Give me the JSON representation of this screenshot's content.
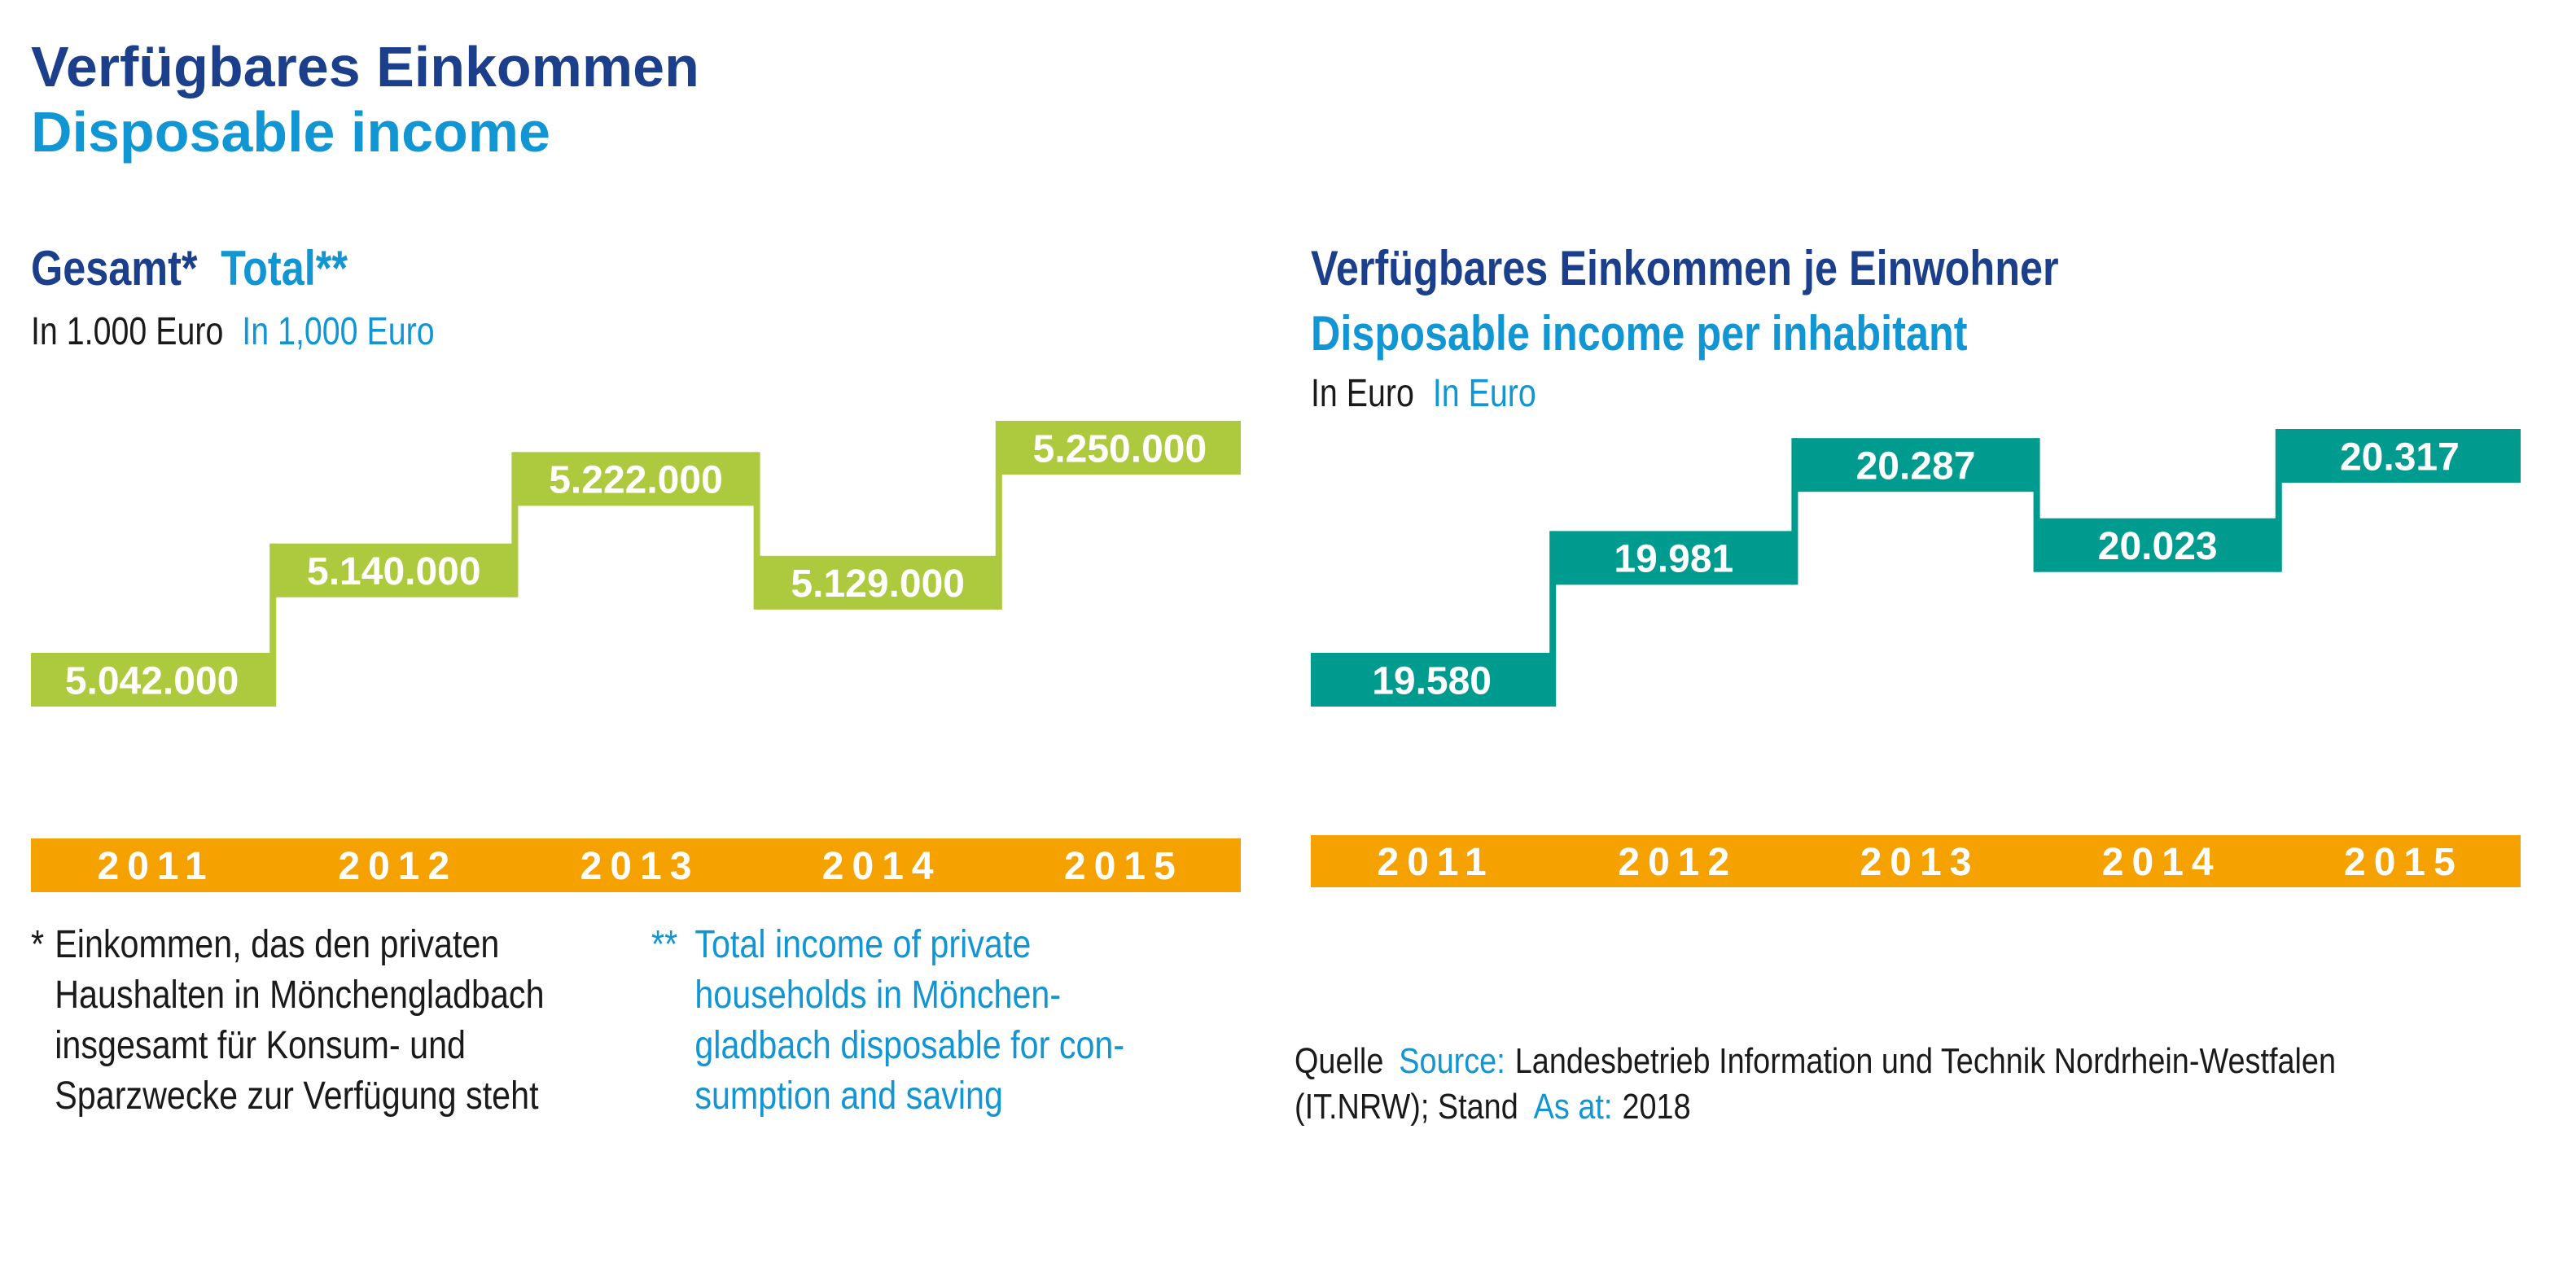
{
  "header": {
    "title_de": "Verfügbares Einkommen",
    "title_en": "Disposable income"
  },
  "left_chart": {
    "title_de": "Gesamt*",
    "title_en": "Total**",
    "unit_de": "In 1.000 Euro",
    "unit_en": "In 1,000 Euro"
  },
  "right_chart": {
    "title_de": "Verfügbares Einkommen je Einwohner",
    "title_en": "Disposable income per inhabitant",
    "unit_de": "In Euro",
    "unit_en": "In Euro"
  },
  "footnotes": {
    "de_marker": "*",
    "de_lines": [
      "Einkommen, das den privaten",
      "Haushalten in Mönchengladbach",
      "insgesamt für Konsum- und",
      "Sparzwecke zur Verfügung steht"
    ],
    "en_marker": "**",
    "en_lines": [
      "Total income of private",
      "households in Mönchen-",
      "gladbach disposable for con-",
      "sumption and saving"
    ]
  },
  "source": {
    "label_de": "Quelle",
    "label_en": "Source:",
    "text_line1": "Landesbetrieb Information und Technik Nordrhein-Westfalen",
    "text_line2_pre": "(IT.NRW); Stand",
    "asat_en": "As at:",
    "year": "2018"
  },
  "colors": {
    "navy": "#1b3f8b",
    "cyan": "#1196d3",
    "green": "#adc93e",
    "teal": "#009b8f",
    "orange": "#f5a200"
  },
  "chart_data": [
    {
      "type": "bar",
      "title": "Gesamt* Total**",
      "ylabel": "In 1.000 Euro / In 1,000 Euro",
      "categories": [
        "2011",
        "2012",
        "2013",
        "2014",
        "2015"
      ],
      "values": [
        5042000,
        5140000,
        5222000,
        5129000,
        5250000
      ],
      "value_labels": [
        "5.042.000",
        "5.140.000",
        "5.222.000",
        "5.129.000",
        "5.250.000"
      ],
      "color": "#adc93e"
    },
    {
      "type": "bar",
      "title": "Verfügbares Einkommen je Einwohner / Disposable income per inhabitant",
      "ylabel": "In Euro",
      "categories": [
        "2011",
        "2012",
        "2013",
        "2014",
        "2015"
      ],
      "values": [
        19580,
        19981,
        20287,
        20023,
        20317
      ],
      "value_labels": [
        "19.580",
        "19.981",
        "20.287",
        "20.023",
        "20.317"
      ],
      "color": "#009b8f"
    }
  ]
}
